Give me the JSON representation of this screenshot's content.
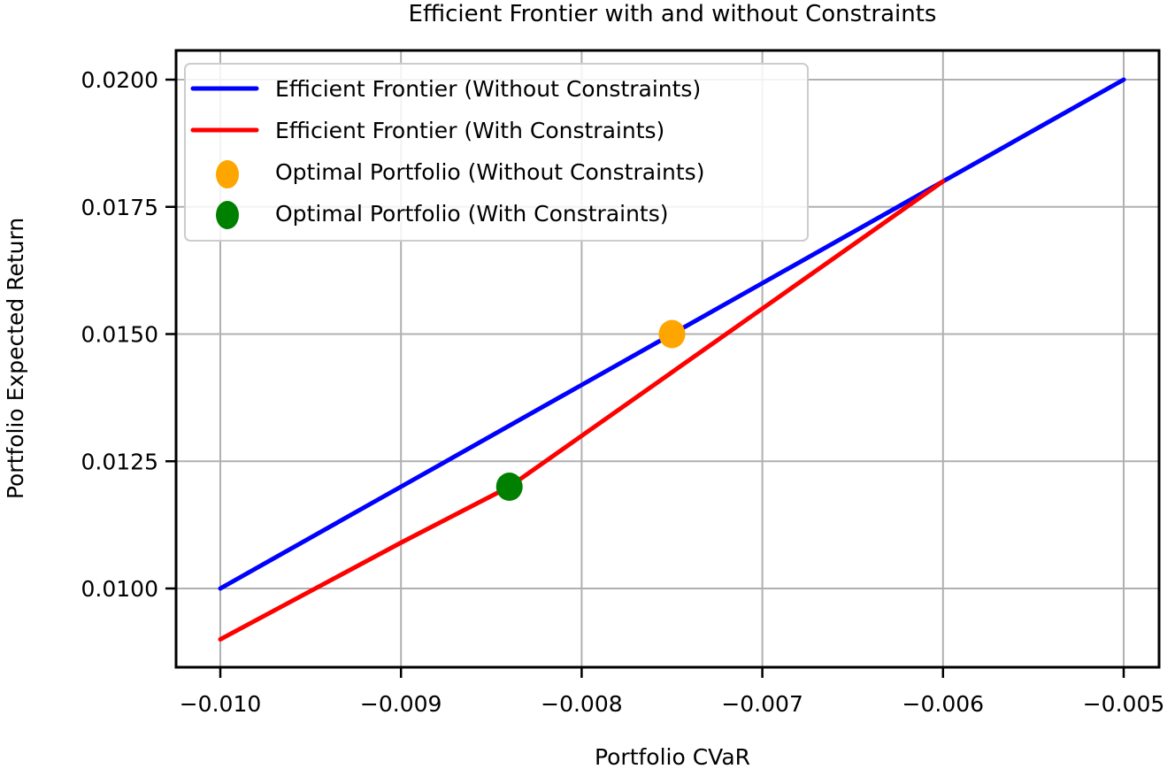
{
  "chart_data": {
    "type": "line",
    "title": "Efficient Frontier with and without Constraints",
    "xlabel": "Portfolio CVaR",
    "ylabel": "Portfolio Expected Return",
    "xlim": [
      -0.0102,
      -0.0049
    ],
    "ylim": [
      0.0084,
      0.0202
    ],
    "grid": true,
    "legend_position": "upper left",
    "x_ticks": [
      -0.01,
      -0.009,
      -0.008,
      -0.007,
      -0.006,
      -0.005
    ],
    "x_tick_labels": [
      "−0.010",
      "−0.009",
      "−0.008",
      "−0.007",
      "−0.006",
      "−0.005"
    ],
    "y_ticks": [
      0.01,
      0.0125,
      0.015,
      0.0175,
      0.02
    ],
    "y_tick_labels": [
      "0.0100",
      "0.0125",
      "0.0150",
      "0.0175",
      "0.0200"
    ],
    "series": [
      {
        "name": "Efficient Frontier (Without Constraints)",
        "kind": "line",
        "color": "#0000ff",
        "x": [
          -0.01,
          -0.009,
          -0.008,
          -0.007,
          -0.006,
          -0.005
        ],
        "y": [
          0.01,
          0.012,
          0.014,
          0.016,
          0.018,
          0.02
        ]
      },
      {
        "name": "Efficient Frontier (With Constraints)",
        "kind": "line",
        "color": "#ff0000",
        "x": [
          -0.01,
          -0.009,
          -0.0084,
          -0.008,
          -0.007,
          -0.006
        ],
        "y": [
          0.009,
          0.0109,
          0.012,
          0.013,
          0.0155,
          0.018
        ]
      },
      {
        "name": "Optimal Portfolio (Without Constraints)",
        "kind": "scatter",
        "color": "#ffa500",
        "x": [
          -0.0075
        ],
        "y": [
          0.015
        ]
      },
      {
        "name": "Optimal Portfolio (With Constraints)",
        "kind": "scatter",
        "color": "#008000",
        "x": [
          -0.0084
        ],
        "y": [
          0.012
        ]
      }
    ]
  },
  "legend": {
    "items": [
      {
        "label": "Efficient Frontier (Without Constraints)",
        "color": "#0000ff",
        "marker": "line"
      },
      {
        "label": "Efficient Frontier (With Constraints)",
        "color": "#ff0000",
        "marker": "line"
      },
      {
        "label": "Optimal Portfolio (Without Constraints)",
        "color": "#ffa500",
        "marker": "circle"
      },
      {
        "label": "Optimal Portfolio (With Constraints)",
        "color": "#008000",
        "marker": "circle"
      }
    ]
  },
  "colors": {
    "grid": "#b0b0b0",
    "axes": "#000000",
    "legend_border": "#cccccc"
  }
}
